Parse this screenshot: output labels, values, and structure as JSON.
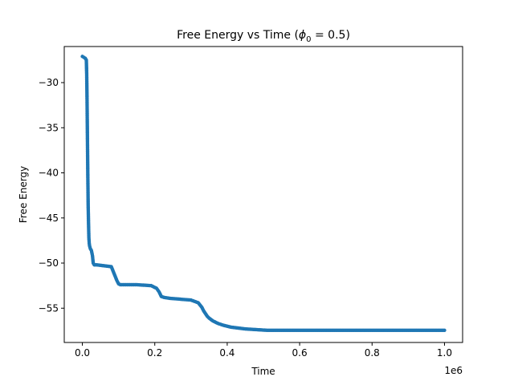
{
  "chart_data": {
    "type": "scatter",
    "title": "Free Energy vs Time (",
    "title_symbol": "ϕ",
    "title_subscript": "0",
    "title_suffix": " = 0.5)",
    "xlabel": "Time",
    "ylabel": "Free Energy",
    "x_offset_text": "1e6",
    "xlim": [
      -50000,
      1050000
    ],
    "ylim": [
      -58.8,
      -26.0
    ],
    "x_ticks": [
      0,
      200000,
      400000,
      600000,
      800000,
      1000000
    ],
    "x_tick_labels": [
      "0.0",
      "0.2",
      "0.4",
      "0.6",
      "0.8",
      "1.0"
    ],
    "y_ticks": [
      -30,
      -35,
      -40,
      -45,
      -50,
      -55
    ],
    "y_tick_labels": [
      "−30",
      "−35",
      "−40",
      "−45",
      "−50",
      "−55"
    ],
    "grid": false,
    "legend": "none",
    "series": [
      {
        "color": "#1f77b4",
        "marker": "circle",
        "x": [
          0,
          4000,
          8000,
          11000,
          12000,
          13000,
          14000,
          15000,
          16000,
          17000,
          18000,
          19000,
          20000,
          22000,
          25000,
          28000,
          30000,
          33000,
          40000,
          60000,
          80000,
          85000,
          90000,
          95000,
          100000,
          105000,
          120000,
          150000,
          190000,
          205000,
          212000,
          218000,
          225000,
          240000,
          270000,
          300000,
          320000,
          330000,
          335000,
          340000,
          345000,
          350000,
          360000,
          375000,
          390000,
          410000,
          430000,
          450000,
          470000,
          490000,
          510000,
          550000,
          600000,
          700000,
          800000,
          900000,
          1000000
        ],
        "y": [
          -27.1,
          -27.2,
          -27.3,
          -27.5,
          -29.0,
          -32.0,
          -36.0,
          -40.0,
          -43.5,
          -45.5,
          -47.2,
          -47.8,
          -48.1,
          -48.4,
          -48.6,
          -49.2,
          -50.0,
          -50.2,
          -50.2,
          -50.3,
          -50.4,
          -50.9,
          -51.4,
          -51.9,
          -52.3,
          -52.4,
          -52.4,
          -52.4,
          -52.5,
          -52.8,
          -53.2,
          -53.7,
          -53.8,
          -53.9,
          -54.0,
          -54.1,
          -54.4,
          -54.9,
          -55.3,
          -55.6,
          -55.9,
          -56.1,
          -56.4,
          -56.7,
          -56.9,
          -57.1,
          -57.2,
          -57.3,
          -57.35,
          -57.4,
          -57.45,
          -57.45,
          -57.45,
          -57.45,
          -57.45,
          -57.45,
          -57.45
        ]
      }
    ]
  }
}
